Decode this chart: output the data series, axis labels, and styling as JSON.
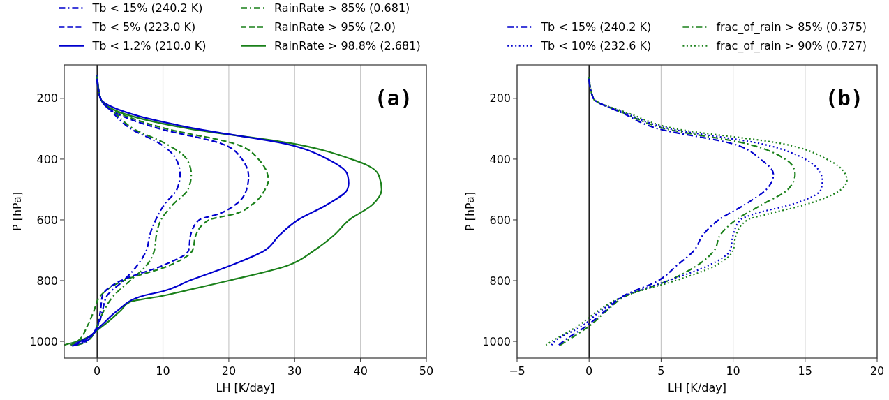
{
  "chart_data": [
    {
      "type": "line",
      "xlabel": "LH [K/day]",
      "ylabel": "P [hPa]",
      "xlim": [
        -5,
        50
      ],
      "xticks": [
        0,
        10,
        20,
        30,
        40,
        50
      ],
      "ylim": [
        1055,
        90
      ],
      "yticks": [
        200,
        400,
        600,
        800,
        1000
      ],
      "grid": "x",
      "legend": "top",
      "annotations": [
        "(a)"
      ],
      "ref_lines": [
        {
          "axis": "x",
          "value": 0,
          "color": "#000000"
        }
      ],
      "series": [
        {
          "name": "Tb < 15% (240.2 K)",
          "color": "#0000cd",
          "line_style": "dashdot",
          "x": [
            0,
            0.5,
            2.5,
            5.1,
            9.6,
            12.0,
            12.6,
            12.1,
            10.2,
            8.9,
            8.0,
            7.5,
            6.1,
            4.0,
            1.5,
            0.8,
            0.1,
            -1.7,
            -3.8
          ],
          "values": [
            140,
            200,
            250,
            300,
            350,
            400,
            450,
            500,
            550,
            600,
            650,
            700,
            750,
            800,
            850,
            900,
            950,
            1000,
            1015
          ]
        },
        {
          "name": "Tb < 5% (223.0 K)",
          "color": "#0000cd",
          "line_style": "dashed",
          "x": [
            0,
            0.5,
            3,
            9.5,
            19,
            22.0,
            23.0,
            22.7,
            21,
            18.5,
            15.5,
            14.2,
            13.9,
            10,
            3.6,
            0.8,
            0.5,
            0,
            -2,
            -3.5
          ],
          "values": [
            135,
            200,
            250,
            300,
            350,
            400,
            457,
            500,
            550,
            580,
            600,
            650,
            700,
            750,
            800,
            850,
            900,
            950,
            1000,
            1012
          ]
        },
        {
          "name": "Tb < 1.2% (210.0 K)",
          "color": "#0000cd",
          "line_style": "solid",
          "x": [
            0,
            0.5,
            5,
            15,
            28.7,
            35,
            38,
            38.2,
            38,
            34.9,
            30.5,
            27.7,
            25.5,
            20.3,
            14,
            10,
            7,
            3,
            0.5,
            -2.5,
            -4
          ],
          "values": [
            125,
            200,
            250,
            300,
            350,
            400,
            450,
            480,
            500,
            550,
            600,
            650,
            700,
            750,
            800,
            835,
            850,
            900,
            950,
            1000,
            1012
          ]
        },
        {
          "name": "RainRate > 85% (0.681)",
          "color": "#1a801a",
          "line_style": "dashdot",
          "x": [
            0,
            0.5,
            2.8,
            5.5,
            10.5,
            13.6,
            14.3,
            13.8,
            11.5,
            9.7,
            9.0,
            8.7,
            7.5,
            5.0,
            2.5,
            1.0,
            0,
            -1.5,
            -3
          ],
          "values": [
            132,
            200,
            250,
            300,
            350,
            400,
            450,
            500,
            550,
            600,
            650,
            700,
            750,
            800,
            850,
            900,
            950,
            1000,
            1012
          ]
        },
        {
          "name": "RainRate > 95% (2.0)",
          "color": "#1a801a",
          "line_style": "dashed",
          "x": [
            0,
            0.5,
            3.5,
            10.5,
            21,
            24.5,
            26,
            25.5,
            23.5,
            21,
            17,
            15,
            14.5,
            11,
            4,
            0.5,
            -0.5,
            -1.5,
            -3,
            -4
          ],
          "values": [
            128,
            200,
            250,
            300,
            350,
            400,
            470,
            500,
            550,
            580,
            600,
            650,
            700,
            750,
            800,
            850,
            900,
            950,
            1000,
            1012
          ]
        },
        {
          "name": "RainRate > 98.8% (2.681)",
          "color": "#1a801a",
          "line_style": "solid",
          "x": [
            0,
            0.5,
            4,
            14,
            30,
            38.6,
            41,
            42.7,
            43.2,
            41.8,
            38.3,
            36,
            33,
            29,
            20,
            14,
            10,
            5,
            3.5,
            0.8,
            -3,
            -5
          ],
          "values": [
            125,
            200,
            250,
            300,
            350,
            400,
            420,
            450,
            500,
            550,
            600,
            650,
            700,
            750,
            800,
            830,
            850,
            870,
            900,
            950,
            1000,
            1012
          ]
        }
      ]
    },
    {
      "type": "line",
      "xlabel": "LH [K/day]",
      "ylabel": "P [hPa]",
      "xlim": [
        -5,
        20
      ],
      "xticks": [
        {
          "value": -5,
          "label": "−5"
        },
        0,
        5,
        10,
        15,
        20
      ],
      "ylim": [
        1055,
        90
      ],
      "yticks": [
        200,
        400,
        600,
        800,
        1000
      ],
      "grid": "x",
      "legend": "top",
      "annotations": [
        "(b)"
      ],
      "ref_lines": [
        {
          "axis": "x",
          "value": 0,
          "color": "#000000"
        }
      ],
      "series": [
        {
          "name": "Tb < 15% (240.2 K)",
          "color": "#0000cd",
          "line_style": "dashdot",
          "x": [
            0,
            0.3,
            2.4,
            4.8,
            10.0,
            11.9,
            12.8,
            12.3,
            10.8,
            9.0,
            7.9,
            7.3,
            6.1,
            4.8,
            2.4,
            1.1,
            -0.2,
            -1.8,
            -2.1
          ],
          "values": [
            140,
            200,
            250,
            300,
            350,
            400,
            450,
            500,
            550,
            600,
            650,
            700,
            750,
            800,
            850,
            900,
            950,
            1000,
            1012
          ]
        },
        {
          "name": "Tb < 10% (232.6 K)",
          "color": "#0000cd",
          "line_style": "dotted",
          "x": [
            0,
            0.3,
            2.6,
            5.6,
            12,
            15,
            16.1,
            16.2,
            16.1,
            14,
            11.5,
            10.5,
            10,
            9.8,
            8.3,
            5.5,
            2.5,
            0.8,
            -0.5,
            -2.4,
            -2.6
          ],
          "values": [
            135,
            200,
            250,
            300,
            350,
            400,
            450,
            470,
            500,
            550,
            580,
            600,
            650,
            700,
            750,
            800,
            850,
            900,
            950,
            1000,
            1012
          ]
        },
        {
          "name": "frac_of_rain > 85% (0.375)",
          "color": "#1a801a",
          "line_style": "dashdot",
          "x": [
            0,
            0.3,
            2.5,
            5.3,
            11,
            13.6,
            14.1,
            14.3,
            13.8,
            12,
            10.2,
            9.1,
            8.7,
            7.5,
            5.5,
            2.6,
            1.2,
            0,
            -1.6,
            -2
          ],
          "values": [
            130,
            200,
            250,
            300,
            350,
            400,
            420,
            450,
            500,
            550,
            600,
            650,
            700,
            750,
            800,
            850,
            900,
            950,
            1000,
            1012
          ]
        },
        {
          "name": "frac_of_rain > 90% (0.727)",
          "color": "#1a801a",
          "line_style": "dotted",
          "x": [
            0,
            0.3,
            2.8,
            6,
            13.5,
            16.5,
            17.8,
            17.9,
            17.5,
            15,
            12.5,
            11,
            10.2,
            10,
            8.8,
            6,
            2.5,
            0.6,
            -0.8,
            -2.6,
            -3.0
          ],
          "values": [
            130,
            200,
            250,
            300,
            350,
            400,
            450,
            470,
            500,
            550,
            580,
            600,
            650,
            700,
            750,
            800,
            850,
            900,
            950,
            1000,
            1012
          ]
        }
      ]
    }
  ]
}
